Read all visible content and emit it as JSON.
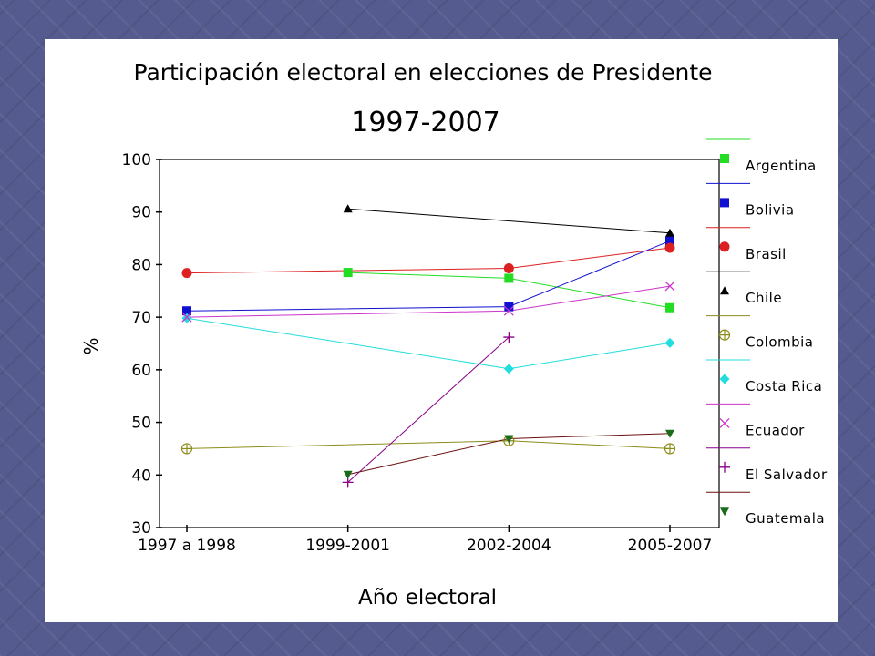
{
  "chart_data": {
    "type": "line",
    "title": "Participación electoral en elecciones de Presidente",
    "subtitle": "1997-2007",
    "xlabel": "Año electoral",
    "ylabel": "%",
    "categories": [
      "1997 a 1998",
      "1999-2001",
      "2002-2004",
      "2005-2007"
    ],
    "ylim": [
      30,
      100
    ],
    "yticks": [
      30,
      40,
      50,
      60,
      70,
      80,
      90,
      100
    ],
    "grid": false,
    "legend_position": "right",
    "series": [
      {
        "name": "Argentina",
        "color": "#22dd22",
        "marker": "square",
        "values": [
          null,
          78.5,
          77.4,
          71.8
        ]
      },
      {
        "name": "Bolivia",
        "color": "#1010d0",
        "marker": "square",
        "values": [
          71.2,
          null,
          72.0,
          84.5
        ]
      },
      {
        "name": "Brasil",
        "color": "#dd2020",
        "marker": "circle",
        "values": [
          78.4,
          null,
          79.3,
          83.2
        ]
      },
      {
        "name": "Chile",
        "color": "#000000",
        "marker": "triangle-up",
        "values": [
          null,
          90.6,
          null,
          86.0
        ]
      },
      {
        "name": "Colombia",
        "color": "#8c8c1a",
        "marker": "circle-plus",
        "values": [
          45.0,
          null,
          46.5,
          45.0
        ]
      },
      {
        "name": "Costa Rica",
        "color": "#22dddd",
        "marker": "diamond",
        "values": [
          69.8,
          null,
          60.2,
          65.1
        ]
      },
      {
        "name": "Ecuador",
        "color": "#cc33cc",
        "marker": "x",
        "values": [
          70.0,
          null,
          71.2,
          75.9
        ]
      },
      {
        "name": "El Salvador",
        "color": "#880088",
        "marker": "plus",
        "values": [
          null,
          38.6,
          66.2,
          null
        ]
      },
      {
        "name": "Guatemala",
        "color": "#6b1010",
        "marker": "triangle-down",
        "markerColor": "#1a6b1a",
        "values": [
          null,
          40.1,
          46.9,
          47.9
        ]
      }
    ]
  }
}
